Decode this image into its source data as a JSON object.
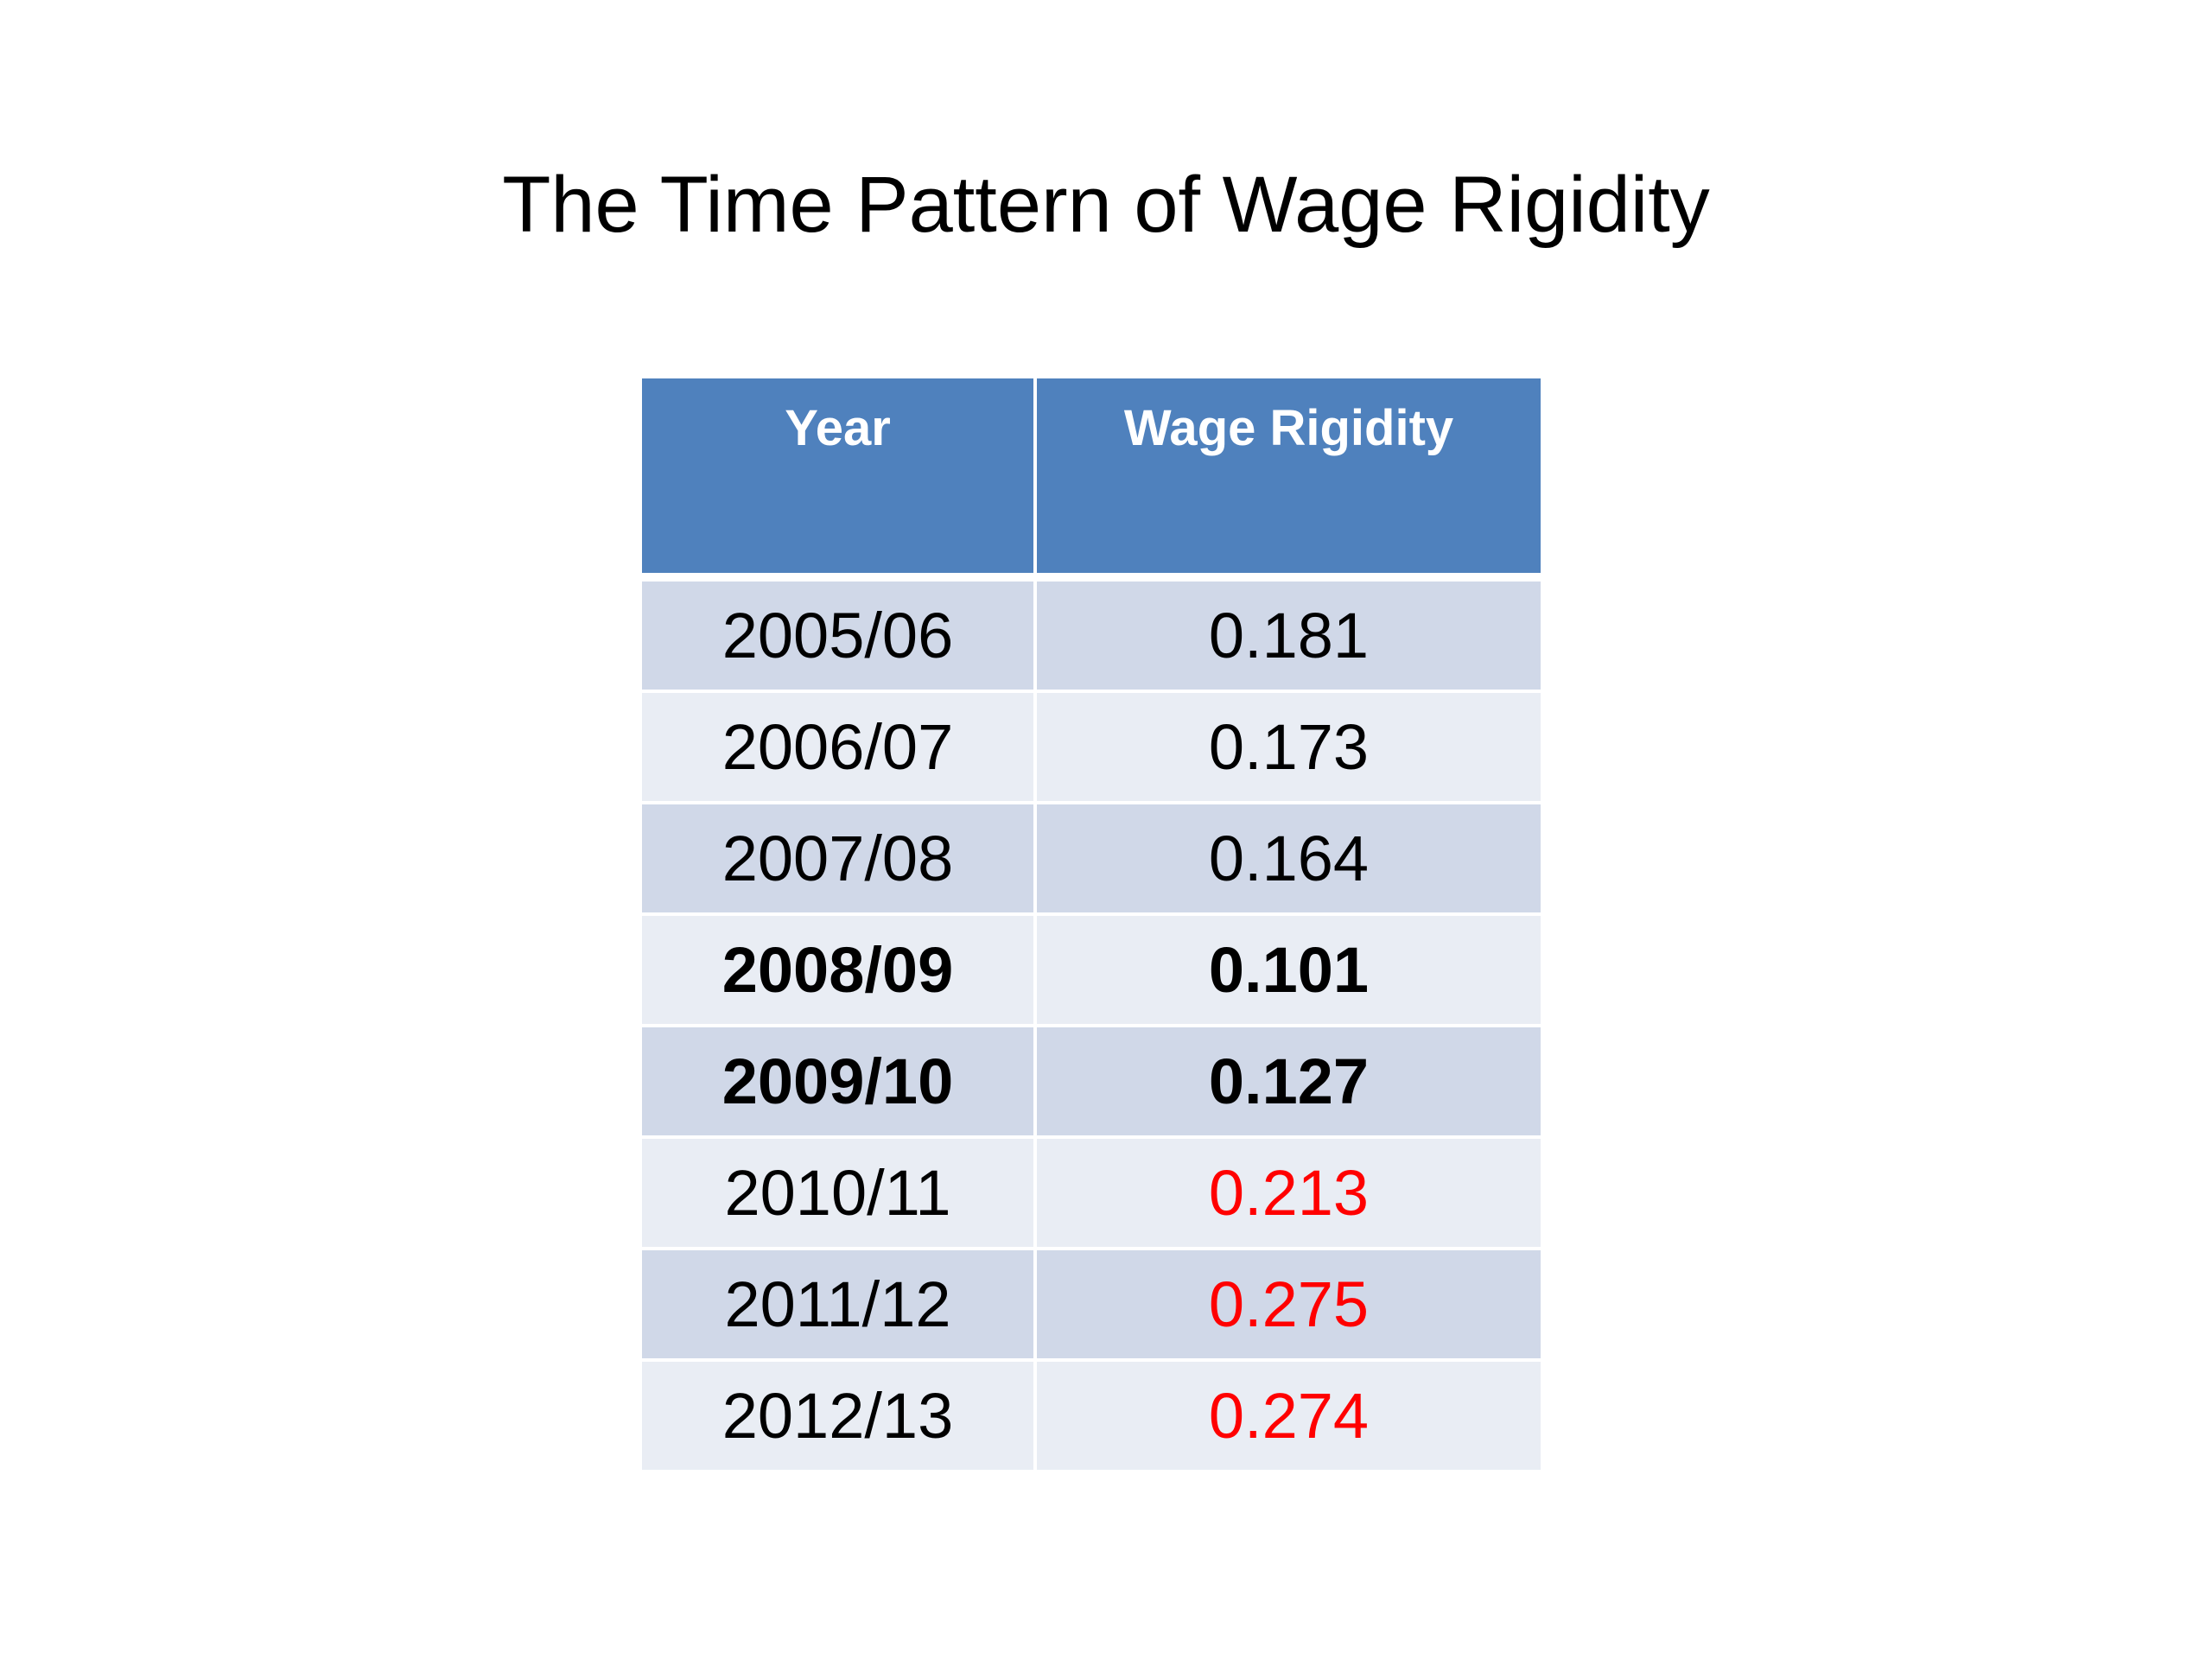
{
  "slide": {
    "title": "The Time Pattern of Wage Rigidity"
  },
  "table": {
    "headers": [
      "Year",
      "Wage Rigidity"
    ],
    "rows": [
      {
        "year": "2005/06",
        "value": "0.181"
      },
      {
        "year": "2006/07",
        "value": "0.173"
      },
      {
        "year": "2007/08",
        "value": "0.164"
      },
      {
        "year": "2008/09",
        "value": "0.101"
      },
      {
        "year": "2009/10",
        "value": "0.127"
      },
      {
        "year": "2010/11",
        "value": "0.213"
      },
      {
        "year": "2011/12",
        "value": "0.275"
      },
      {
        "year": "2012/13",
        "value": "0.274"
      }
    ],
    "colors": {
      "header_bg": "#4f81bd",
      "header_text": "#ffffff",
      "row_band_dark": "#d0d8e8",
      "row_band_light": "#e9edf4",
      "highlight_text": "#ff0000"
    }
  }
}
